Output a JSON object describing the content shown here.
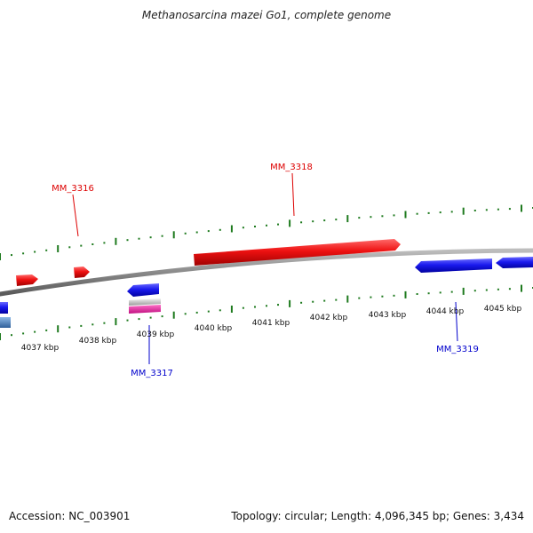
{
  "title": "Methanosarcina mazei Go1, complete genome",
  "footer": {
    "accession": "Accession: NC_003901",
    "summary": "Topology: circular; Length: 4,096,345 bp; Genes: 3,434"
  },
  "colors": {
    "forward_gene": "#ee1111",
    "reverse_gene": "#1a1aee",
    "backbone": "#8a8a8a",
    "tick": "#1e7a1e",
    "pink": "#e0209a",
    "steel_blue": "#4a86c8"
  },
  "kbp_labels": [
    "4037 kbp",
    "4038 kbp",
    "4039 kbp",
    "4040 kbp",
    "4041 kbp",
    "4042 kbp",
    "4043 kbp",
    "4044 kbp",
    "4045 kbp"
  ],
  "gene_labels": [
    {
      "name": "MM_3316",
      "strand": "forward"
    },
    {
      "name": "MM_3318",
      "strand": "forward"
    },
    {
      "name": "MM_3317",
      "strand": "reverse"
    },
    {
      "name": "MM_3319",
      "strand": "reverse"
    }
  ]
}
